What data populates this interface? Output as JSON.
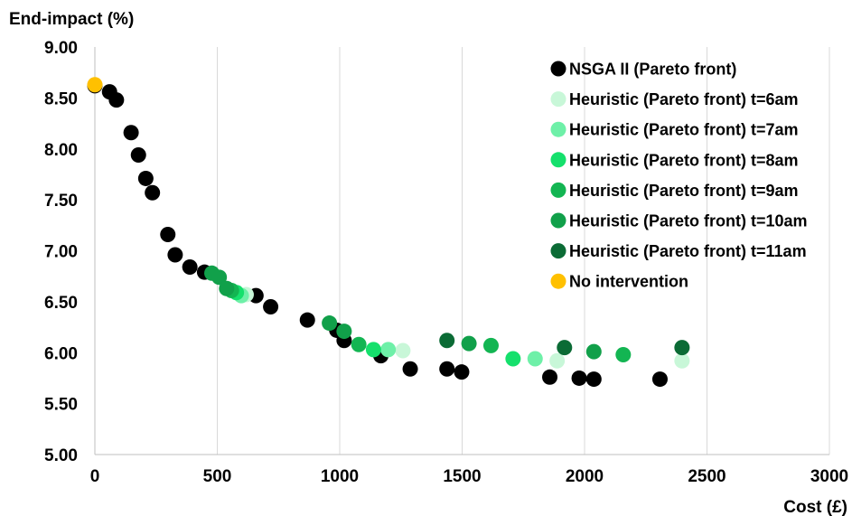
{
  "chart_data": {
    "type": "scatter",
    "xlabel": "Cost (£)",
    "ylabel": "End-impact (%)",
    "xlim": [
      0,
      3000
    ],
    "ylim": [
      5.0,
      9.0
    ],
    "x_ticks": [
      "0",
      "500",
      "1000",
      "1500",
      "2000",
      "2500",
      "3000"
    ],
    "y_ticks": [
      "5.00",
      "5.50",
      "6.00",
      "6.50",
      "7.00",
      "7.50",
      "8.00",
      "8.50",
      "9.00"
    ],
    "grid": "vertical",
    "legend_position": "top-right",
    "series": [
      {
        "name": "NSGA II (Pareto front)",
        "color": "#000000",
        "points": [
          [
            0,
            8.62
          ],
          [
            60,
            8.56
          ],
          [
            88,
            8.48
          ],
          [
            148,
            8.16
          ],
          [
            178,
            7.94
          ],
          [
            208,
            7.71
          ],
          [
            235,
            7.57
          ],
          [
            298,
            7.16
          ],
          [
            328,
            6.96
          ],
          [
            388,
            6.84
          ],
          [
            448,
            6.79
          ],
          [
            658,
            6.56
          ],
          [
            718,
            6.45
          ],
          [
            868,
            6.32
          ],
          [
            988,
            6.22
          ],
          [
            1018,
            6.12
          ],
          [
            1168,
            5.97
          ],
          [
            1288,
            5.84
          ],
          [
            1438,
            5.84
          ],
          [
            1498,
            5.81
          ],
          [
            1858,
            5.76
          ],
          [
            1978,
            5.75
          ],
          [
            2038,
            5.74
          ],
          [
            2308,
            5.74
          ]
        ]
      },
      {
        "name": "Heuristic (Pareto front) t=6am",
        "color": "#c8f7d8",
        "points": [
          [
            618,
            6.57
          ],
          [
            1258,
            6.02
          ],
          [
            1888,
            5.92
          ],
          [
            2398,
            5.92
          ]
        ]
      },
      {
        "name": "Heuristic (Pareto front) t=7am",
        "color": "#6ef0a8",
        "points": [
          [
            598,
            6.56
          ],
          [
            1198,
            6.03
          ],
          [
            1798,
            5.94
          ]
        ]
      },
      {
        "name": "Heuristic (Pareto front) t=8am",
        "color": "#15e06c",
        "points": [
          [
            578,
            6.59
          ],
          [
            1138,
            6.03
          ],
          [
            1708,
            5.94
          ]
        ]
      },
      {
        "name": "Heuristic (Pareto front) t=9am",
        "color": "#13b552",
        "points": [
          [
            558,
            6.61
          ],
          [
            1078,
            6.08
          ],
          [
            1618,
            6.07
          ],
          [
            2158,
            5.98
          ]
        ]
      },
      {
        "name": "Heuristic (Pareto front) t=10am",
        "color": "#11a04a",
        "points": [
          [
            478,
            6.78
          ],
          [
            508,
            6.74
          ],
          [
            538,
            6.63
          ],
          [
            958,
            6.29
          ],
          [
            1018,
            6.21
          ],
          [
            1528,
            6.09
          ],
          [
            2038,
            6.01
          ]
        ]
      },
      {
        "name": "Heuristic (Pareto front) t=11am",
        "color": "#0b6b35",
        "points": [
          [
            1438,
            6.12
          ],
          [
            1918,
            6.05
          ],
          [
            2398,
            6.05
          ]
        ]
      },
      {
        "name": "No intervention",
        "color": "#ffc000",
        "points": [
          [
            0,
            8.63
          ]
        ]
      }
    ]
  }
}
